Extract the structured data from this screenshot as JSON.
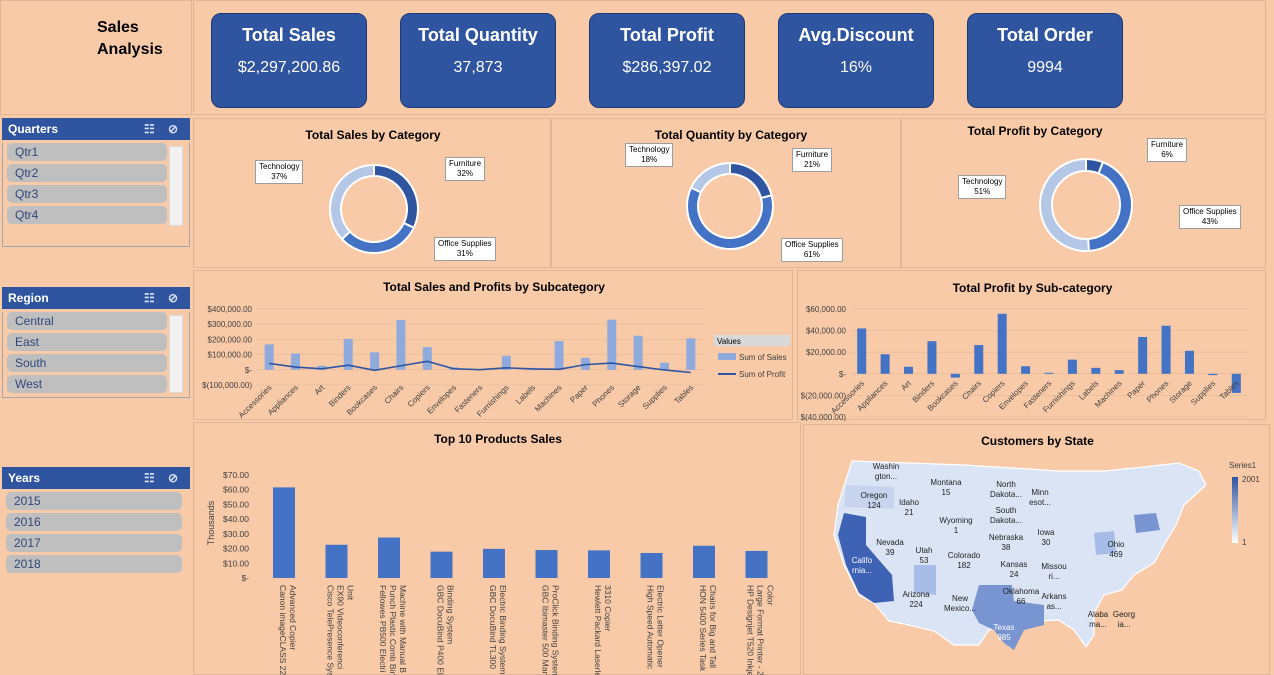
{
  "header": {
    "title": "Sales Analysis"
  },
  "kpis": [
    {
      "label": "Total Sales",
      "value": "$2,297,200.86"
    },
    {
      "label": "Total Quantity",
      "value": "37,873"
    },
    {
      "label": "Total Profit",
      "value": "$286,397.02"
    },
    {
      "label": "Avg.Discount",
      "value": "16%"
    },
    {
      "label": "Total Order",
      "value": "9994"
    }
  ],
  "slicers": {
    "quarters": {
      "title": "Quarters",
      "items": [
        "Qtr1",
        "Qtr2",
        "Qtr3",
        "Qtr4"
      ]
    },
    "region": {
      "title": "Region",
      "items": [
        "Central",
        "East",
        "South",
        "West"
      ]
    },
    "years": {
      "title": "Years",
      "items": [
        "2015",
        "2016",
        "2017",
        "2018"
      ]
    }
  },
  "colors": {
    "primary": "#2f54a0",
    "accent": "#4472c4",
    "light": "#8faadc",
    "pale": "#b4c7e7",
    "bg": "#f8caa8"
  },
  "chart_data": [
    {
      "type": "pie",
      "title": "Total Sales by Category",
      "categories": [
        "Furniture",
        "Office Supplies",
        "Technology"
      ],
      "values": [
        32,
        31,
        37
      ],
      "labels": [
        {
          "name": "Furniture",
          "pct": "32%"
        },
        {
          "name": "Office Supplies",
          "pct": "31%"
        },
        {
          "name": "Technology",
          "pct": "37%"
        }
      ]
    },
    {
      "type": "pie",
      "title": "Total Quantity by Category",
      "categories": [
        "Furniture",
        "Office Supplies",
        "Technology"
      ],
      "values": [
        21,
        61,
        18
      ],
      "labels": [
        {
          "name": "Furniture",
          "pct": "21%"
        },
        {
          "name": "Office Supplies",
          "pct": "61%"
        },
        {
          "name": "Technology",
          "pct": "18%"
        }
      ]
    },
    {
      "type": "pie",
      "title": "Total Profit by Category",
      "categories": [
        "Furniture",
        "Office Supplies",
        "Technology"
      ],
      "values": [
        6,
        43,
        51
      ],
      "labels": [
        {
          "name": "Furniture",
          "pct": "6%"
        },
        {
          "name": "Office Supplies",
          "pct": "43%"
        },
        {
          "name": "Technology",
          "pct": "51%"
        }
      ]
    },
    {
      "type": "bar",
      "title": "Total Sales and Profits by Subcategory",
      "categories": [
        "Accessories",
        "Appliances",
        "Art",
        "Binders",
        "Bookcases",
        "Chairs",
        "Copiers",
        "Envelopes",
        "Fasteners",
        "Furnishings",
        "Labels",
        "Machines",
        "Paper",
        "Phones",
        "Storage",
        "Supplies",
        "Tables"
      ],
      "series": [
        {
          "name": "Sum of Sales",
          "values": [
            167000,
            107500,
            27000,
            203400,
            114900,
            328400,
            149500,
            16500,
            3000,
            91700,
            12500,
            189200,
            78500,
            330000,
            223800,
            46700,
            206900
          ]
        },
        {
          "name": "Sum of Profit",
          "values": [
            42000,
            18100,
            6500,
            30200,
            -3500,
            26600,
            55600,
            6960,
            950,
            13100,
            5500,
            3400,
            34100,
            44500,
            21300,
            -1200,
            -17700
          ]
        }
      ],
      "ylim": [
        -100000,
        400000
      ],
      "yticks": [
        "$400,000.00",
        "$300,000.00",
        "$200,000.00",
        "$100,000.00",
        "$-",
        "$(100,000.00)"
      ],
      "legend_title": "Values"
    },
    {
      "type": "bar",
      "title": "Total Profit by Sub-category",
      "categories": [
        "Accessories",
        "Appliances",
        "Art",
        "Binders",
        "Bookcases",
        "Chairs",
        "Copiers",
        "Envelopes",
        "Fasteners",
        "Furnishings",
        "Labels",
        "Machines",
        "Paper",
        "Phones",
        "Storage",
        "Supplies",
        "Tables"
      ],
      "values": [
        42000,
        18100,
        6500,
        30200,
        -3500,
        26600,
        55600,
        6960,
        950,
        13100,
        5500,
        3400,
        34100,
        44500,
        21300,
        -1200,
        -17700
      ],
      "ylim": [
        -40000,
        60000
      ],
      "yticks": [
        "$60,000.00",
        "$40,000.00",
        "$20,000.00",
        "$-",
        "$(20,000.00)",
        "$(40,000.00)"
      ]
    },
    {
      "type": "bar",
      "title": "Top 10 Products Sales",
      "ylabel": "Thousands",
      "categories": [
        "Canon imageCLASS 2200 Advanced Copier",
        "Cisco TelePresence System EX90 Videoconferencing Unit",
        "Fellowes PB500 Electric Punch Plastic Comb Binding Machine with Manual Bind",
        "GBC DocuBind P400 Electric Binding System",
        "GBC DocuBind TL300 Electric Binding System",
        "GBC Ibimaster 500 Manual ProClick Binding System",
        "Hewlett Packard LaserJet 3310 Copier",
        "High Speed Automatic Electric Letter Opener",
        "HON 5400 Series Task Chairs for Big and Tall",
        "HP Designjet T520 Inkjet Large Format Printer - 24\" Color"
      ],
      "category_labels": [
        [
          "Canon imageCLASS 2200",
          "Advanced Copier"
        ],
        [
          "Cisco TelePresence Syste",
          "EX90 Videoconferenci",
          "Unit"
        ],
        [
          "Fellowes PB500 Electri",
          "Punch Plastic Comb Bind",
          "Machine with Manual B"
        ],
        [
          "GBC DocuBind P400 Ele",
          "Binding System"
        ],
        [
          "GBC DocuBind TL300",
          "Electric Binding System"
        ],
        [
          "GBC Ibimaster 500 Manu",
          "ProClick Binding System"
        ],
        [
          "Hewlett Packard Laserle",
          "3310 Copier"
        ],
        [
          "High Speed Automatic",
          "Electric Letter Opener"
        ],
        [
          "HON 5400 Series Task",
          "Chairs for Big and Tall"
        ],
        [
          "HP Designjet T520 Inkje",
          "Large Format Printer - 2",
          "Color"
        ]
      ],
      "values": [
        61.6,
        22.6,
        27.5,
        17.9,
        19.8,
        19.0,
        18.8,
        17.0,
        21.9,
        18.4
      ],
      "ylim": [
        0,
        70
      ],
      "yticks": [
        "$70.00",
        "$60.00",
        "$50.00",
        "$40.00",
        "$30.00",
        "$20.00",
        "$10.00",
        "$-"
      ]
    },
    {
      "type": "map",
      "title": "Customers by State",
      "legend_title": "Series1",
      "legend_range": [
        1,
        2001
      ],
      "states": [
        {
          "name": "Washin gton...",
          "value": null
        },
        {
          "name": "Oregon",
          "value": 124
        },
        {
          "name": "Montana",
          "value": 15
        },
        {
          "name": "Idaho",
          "value": 21
        },
        {
          "name": "North Dakota...",
          "value": null
        },
        {
          "name": "Minn esot...",
          "value": null
        },
        {
          "name": "South Dakota...",
          "value": null
        },
        {
          "name": "Wyoming",
          "value": 1
        },
        {
          "name": "Nevada",
          "value": 39
        },
        {
          "name": "Utah",
          "value": 53
        },
        {
          "name": "Nebraska",
          "value": 38
        },
        {
          "name": "Iowa",
          "value": 30
        },
        {
          "name": "Ohio",
          "value": 469
        },
        {
          "name": "Califo rnia...",
          "value": null
        },
        {
          "name": "Colorado",
          "value": 182
        },
        {
          "name": "Kansas",
          "value": 24
        },
        {
          "name": "Missou ri...",
          "value": null
        },
        {
          "name": "Arizona",
          "value": 224
        },
        {
          "name": "New Mexico...",
          "value": null
        },
        {
          "name": "Oklahoma",
          "value": 66
        },
        {
          "name": "Arkans as...",
          "value": null
        },
        {
          "name": "Alaba ma...",
          "value": null
        },
        {
          "name": "Georg ia...",
          "value": null
        },
        {
          "name": "Texas",
          "value": 985
        }
      ]
    }
  ]
}
